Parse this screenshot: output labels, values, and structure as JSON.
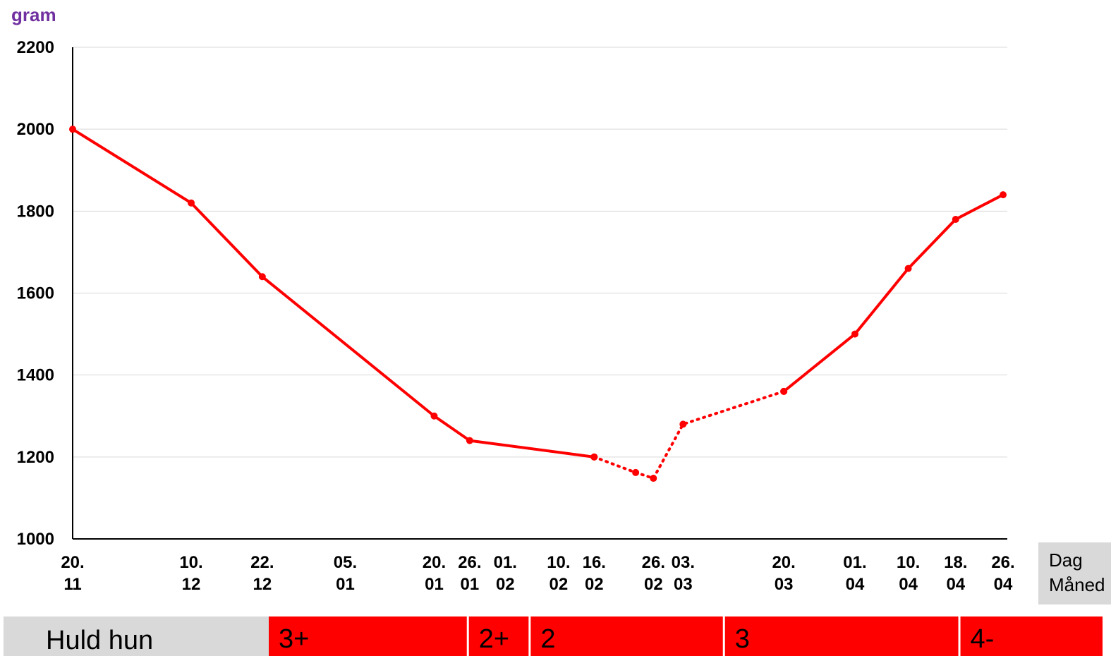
{
  "chart_data": {
    "type": "line",
    "ylabel": "gram",
    "ylim": [
      1000,
      2200
    ],
    "yticks": [
      "1000",
      "1200",
      "1400",
      "1600",
      "1800",
      "2000",
      "2200"
    ],
    "grid": true,
    "x_label_lines": [
      "Dag",
      "Måned"
    ],
    "x_ticks": [
      {
        "day": "20.",
        "month": "11",
        "x": 0
      },
      {
        "day": "10.",
        "month": "12",
        "x": 20
      },
      {
        "day": "22.",
        "month": "12",
        "x": 32
      },
      {
        "day": "05.",
        "month": "01",
        "x": 46
      },
      {
        "day": "20.",
        "month": "01",
        "x": 61
      },
      {
        "day": "26.",
        "month": "01",
        "x": 67
      },
      {
        "day": "01.",
        "month": "02",
        "x": 73
      },
      {
        "day": "10.",
        "month": "02",
        "x": 82
      },
      {
        "day": "16.",
        "month": "02",
        "x": 88
      },
      {
        "day": "26.",
        "month": "02",
        "x": 98
      },
      {
        "day": "03.",
        "month": "03",
        "x": 103
      },
      {
        "day": "20.",
        "month": "03",
        "x": 120
      },
      {
        "day": "01.",
        "month": "04",
        "x": 132
      },
      {
        "day": "10.",
        "month": "04",
        "x": 141
      },
      {
        "day": "18.",
        "month": "04",
        "x": 149
      },
      {
        "day": "26.",
        "month": "04",
        "x": 157
      }
    ],
    "series": [
      {
        "style": "solid",
        "color": "#ff0000",
        "points": [
          {
            "x": 0,
            "y": 2000
          },
          {
            "x": 20,
            "y": 1820
          },
          {
            "x": 32,
            "y": 1640
          },
          {
            "x": 61,
            "y": 1300
          },
          {
            "x": 67,
            "y": 1240
          },
          {
            "x": 88,
            "y": 1200
          }
        ]
      },
      {
        "style": "dotted",
        "color": "#ff0000",
        "points": [
          {
            "x": 88,
            "y": 1200
          },
          {
            "x": 95,
            "y": 1162
          },
          {
            "x": 98,
            "y": 1148
          },
          {
            "x": 103,
            "y": 1280
          },
          {
            "x": 120,
            "y": 1360
          }
        ]
      },
      {
        "style": "solid",
        "color": "#ff0000",
        "points": [
          {
            "x": 120,
            "y": 1360
          },
          {
            "x": 132,
            "y": 1500
          },
          {
            "x": 141,
            "y": 1660
          },
          {
            "x": 149,
            "y": 1780
          },
          {
            "x": 157,
            "y": 1840
          }
        ]
      }
    ],
    "condition_bar": {
      "label": "Huld hun",
      "label_color": "#d9d9d9",
      "band_color": "#ff0000",
      "segments": [
        {
          "label": "3+",
          "start": 0,
          "end": 34
        },
        {
          "label": "2+",
          "start": 34,
          "end": 44.5
        },
        {
          "label": "2",
          "start": 44.5,
          "end": 77.5
        },
        {
          "label": "3",
          "start": 77.5,
          "end": 117.5
        },
        {
          "label": "4-",
          "start": 117.5,
          "end": 142
        }
      ]
    },
    "colors": {
      "line": "#ff0000",
      "grid": "#d9d9d9",
      "axis": "#000000",
      "ylabel": "#7030a0",
      "legend_box": "#d9d9d9"
    }
  }
}
